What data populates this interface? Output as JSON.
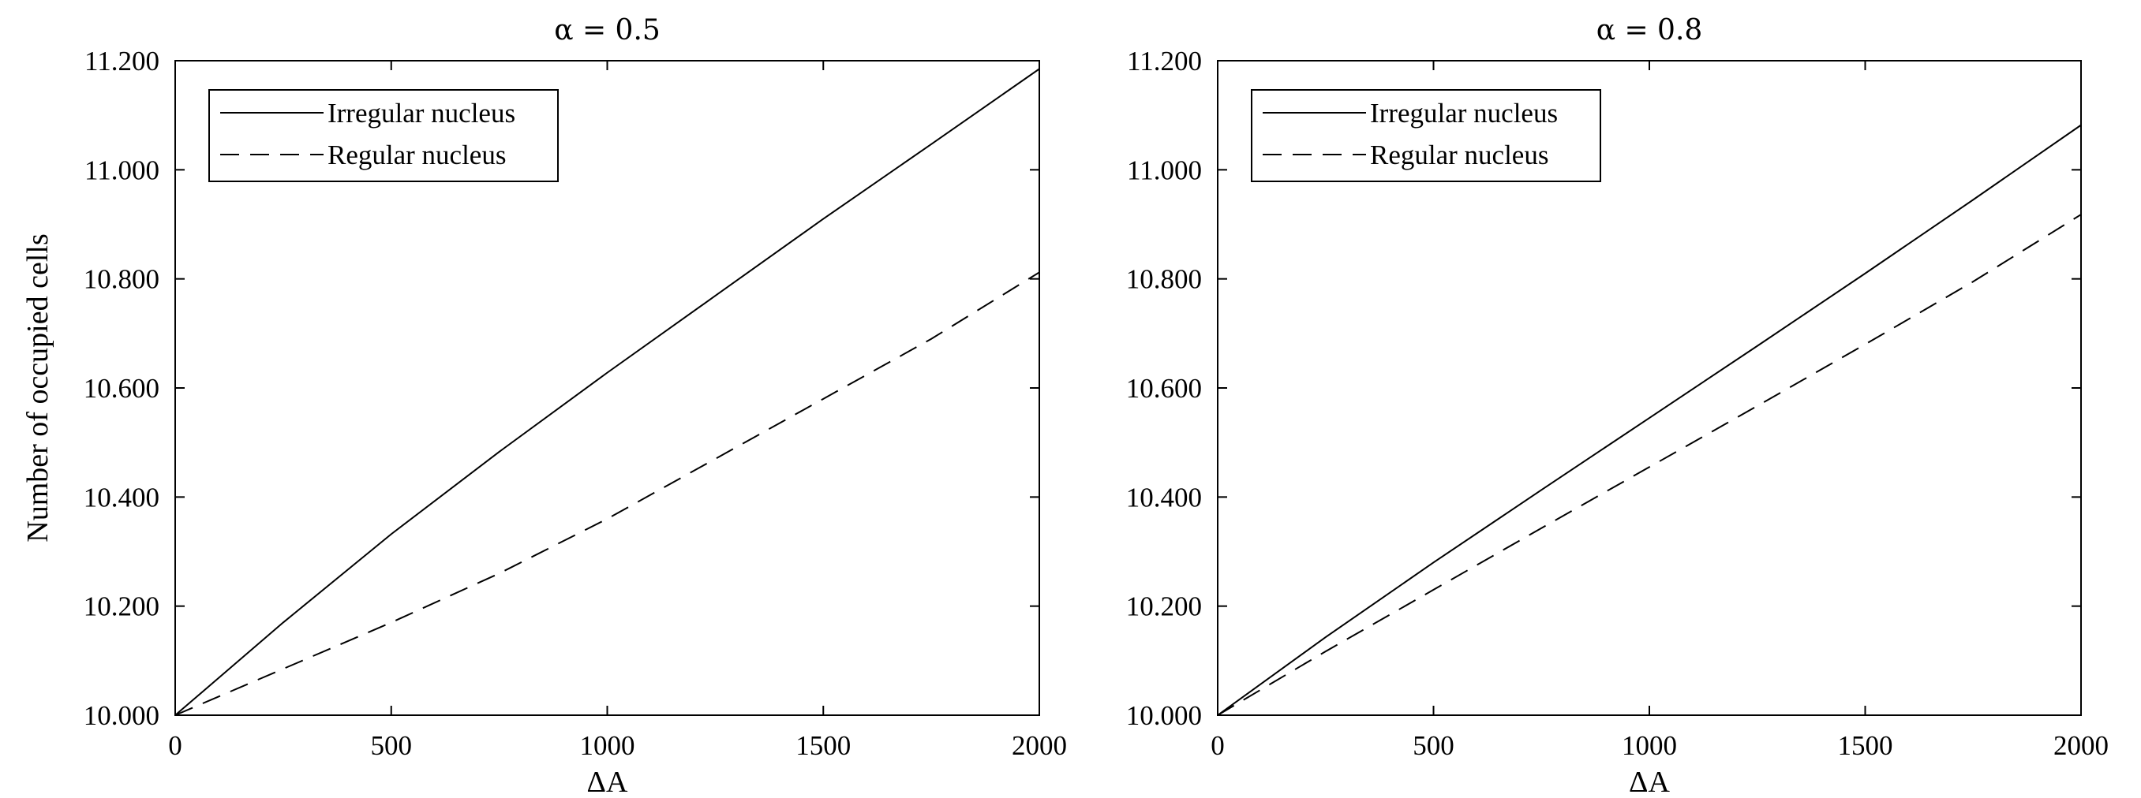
{
  "chart_data": [
    {
      "type": "line",
      "title": "α = 0.5",
      "xlabel": "ΔA",
      "ylabel": "Number of occupied cells",
      "xlim": [
        0,
        2000
      ],
      "ylim": [
        10000,
        11200
      ],
      "xticks": [
        0,
        500,
        1000,
        1500,
        2000
      ],
      "xtick_labels": [
        "0",
        "500",
        "1000",
        "1500",
        "2000"
      ],
      "yticks": [
        10000,
        10200,
        10400,
        10600,
        10800,
        11000,
        11200
      ],
      "ytick_labels": [
        "10.000",
        "10.200",
        "10.400",
        "10.600",
        "10.800",
        "11.000",
        "11.200"
      ],
      "legend_position": "top-left",
      "grid": false,
      "x": [
        0,
        250,
        500,
        750,
        1000,
        1250,
        1500,
        1750,
        2000
      ],
      "series": [
        {
          "name": "Irregular nucleus",
          "style": "solid",
          "values": [
            10000,
            10170,
            10332,
            10483,
            10628,
            10769,
            10910,
            11047,
            11185
          ]
        },
        {
          "name": "Regular nucleus",
          "style": "dashed",
          "values": [
            10000,
            10085,
            10170,
            10260,
            10360,
            10470,
            10580,
            10690,
            10812
          ]
        }
      ]
    },
    {
      "type": "line",
      "title": "α = 0.8",
      "xlabel": "ΔA",
      "ylabel": "",
      "xlim": [
        0,
        2000
      ],
      "ylim": [
        10000,
        11200
      ],
      "xticks": [
        0,
        500,
        1000,
        1500,
        2000
      ],
      "xtick_labels": [
        "0",
        "500",
        "1000",
        "1500",
        "2000"
      ],
      "yticks": [
        10000,
        10200,
        10400,
        10600,
        10800,
        11000,
        11200
      ],
      "ytick_labels": [
        "10.000",
        "10.200",
        "10.400",
        "10.600",
        "10.800",
        "11.000",
        "11.200"
      ],
      "legend_position": "top-left",
      "grid": false,
      "x": [
        0,
        250,
        500,
        750,
        1000,
        1250,
        1500,
        1750,
        2000
      ],
      "series": [
        {
          "name": "Irregular nucleus",
          "style": "solid",
          "values": [
            10000,
            10143,
            10280,
            10413,
            10545,
            10677,
            10810,
            10945,
            11082
          ]
        },
        {
          "name": "Regular nucleus",
          "style": "dashed",
          "values": [
            10000,
            10117,
            10230,
            10343,
            10455,
            10567,
            10680,
            10795,
            10918
          ]
        }
      ]
    }
  ]
}
